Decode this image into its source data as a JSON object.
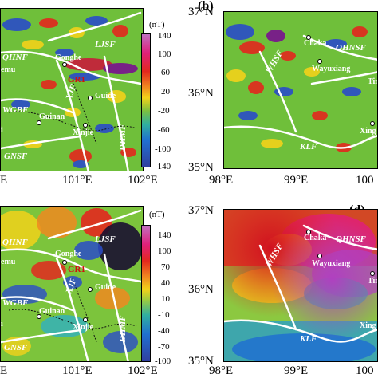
{
  "panels": {
    "a": {
      "faults": [
        "QHNF",
        "LJSF",
        "XJF",
        "DHMF",
        "WGBF",
        "GNSF"
      ],
      "places": [
        "Gonghe",
        "Guide",
        "Guinan",
        "Xinjie"
      ],
      "partial_labels": [
        "emu",
        "i"
      ],
      "gr1": "GR1"
    },
    "b": {
      "label": "(b)",
      "faults": [
        "WHSF",
        "QHNSF",
        "KLF"
      ],
      "places": [
        "Chaka",
        "Wayuxiang",
        "Ting",
        "Xing"
      ]
    },
    "c": {
      "faults": [
        "QHNF",
        "LJSF",
        "XJF",
        "DHMF",
        "WGBF",
        "GNSF"
      ],
      "places": [
        "Gonghe",
        "Guide",
        "Guinan",
        "Xinjie"
      ],
      "partial_labels": [
        "emu",
        "i"
      ],
      "gr1": "GR1"
    },
    "d": {
      "label": "(d)",
      "faults": [
        "WHSF",
        "QHNSF",
        "KLF"
      ],
      "places": [
        "Chaka",
        "Wayuxiang",
        "Ting",
        "Xing"
      ]
    }
  },
  "axes": {
    "left_x_ticks": [
      "E",
      "101°E",
      "102°E"
    ],
    "right_x_ticks": [
      "98°E",
      "99°E",
      "100"
    ],
    "right_y_ticks": [
      "37°N",
      "36°N",
      "35°N"
    ]
  },
  "colorbar_top": {
    "unit": "(nT)",
    "ticks": [
      "140",
      "100",
      "60",
      "20",
      "-20",
      "-60",
      "-100",
      "-140"
    ]
  },
  "colorbar_bottom": {
    "unit": "(nT)",
    "ticks": [
      "140",
      "100",
      "70",
      "40",
      "10",
      "-10",
      "-40",
      "-70",
      "-100"
    ]
  },
  "colors": {
    "fault": "#ffffff",
    "gr1": "#d01010",
    "background": "#ffffff"
  }
}
